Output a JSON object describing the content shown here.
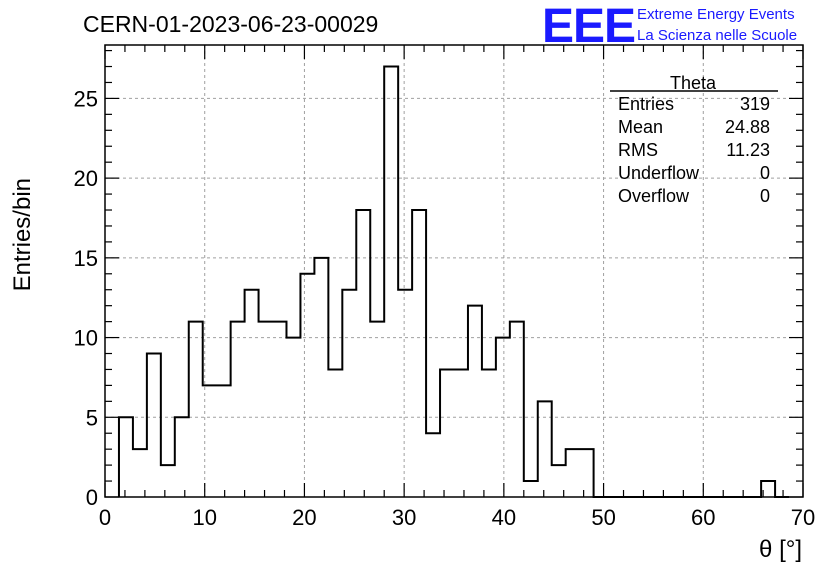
{
  "chart_data": {
    "type": "bar",
    "title": "CERN-01-2023-06-23-00029",
    "xlabel": "θ [°]",
    "ylabel": "Entries/bin",
    "xlim": [
      0,
      70
    ],
    "ylim": [
      0,
      28.35
    ],
    "grid": true,
    "x_ticks": [
      0,
      10,
      20,
      30,
      40,
      50,
      60,
      70
    ],
    "y_ticks": [
      0,
      5,
      10,
      15,
      20,
      25
    ],
    "bin_width": 1.4,
    "bins_start": 1.4,
    "values": [
      5,
      3,
      9,
      2,
      5,
      11,
      7,
      7,
      11,
      13,
      11,
      11,
      10,
      14,
      15,
      8,
      13,
      18,
      11,
      27,
      13,
      18,
      4,
      8,
      8,
      12,
      8,
      10,
      11,
      1,
      6,
      2,
      3,
      3,
      0,
      0,
      0,
      0,
      0,
      0,
      0,
      0,
      0,
      0,
      0,
      0,
      1,
      0
    ],
    "stats_box": {
      "title": "Theta",
      "rows": [
        {
          "label": "Entries",
          "value": "319"
        },
        {
          "label": "Mean",
          "value": "24.88"
        },
        {
          "label": "RMS",
          "value": "11.23"
        },
        {
          "label": "Underflow",
          "value": "0"
        },
        {
          "label": "Overflow",
          "value": "0"
        }
      ]
    }
  },
  "logo": {
    "mark": "EEE",
    "line1": "Extreme Energy Events",
    "line2": "La Scienza nelle Scuole"
  },
  "colors": {
    "logo": "#1a1aff",
    "histogram": "#000000",
    "grid": "#a0a0a0"
  }
}
